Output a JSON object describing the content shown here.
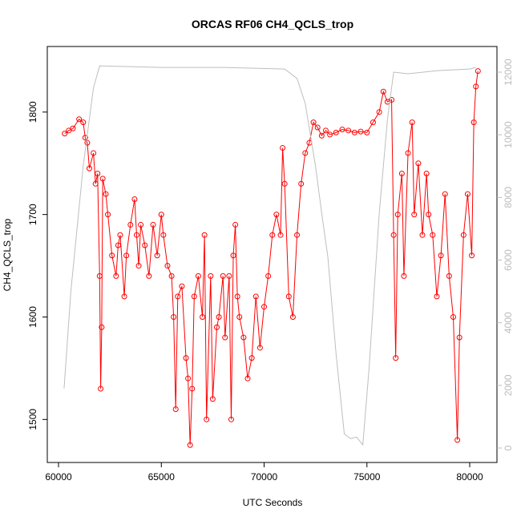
{
  "chart_data": {
    "type": "line",
    "title": "ORCAS RF06 CH4_QCLS_trop",
    "x_label": "UTC Seconds",
    "y_label": "CH4_QCLS_trop",
    "xlim": [
      59454,
      81325
    ],
    "ylim": [
      1458,
      1864
    ],
    "y2lim": [
      -461,
      12819
    ],
    "xticks": [
      60000,
      65000,
      70000,
      75000,
      80000
    ],
    "yticks": [
      1500,
      1600,
      1700,
      1800
    ],
    "y2ticks": [
      0,
      2000,
      4000,
      6000,
      8000,
      10000,
      12000
    ],
    "series": [
      {
        "color": "#ff0000",
        "markers": true,
        "x": [
          60300,
          60500,
          60700,
          61000,
          61200,
          61300,
          61400,
          61500,
          61700,
          61800,
          61900,
          62000,
          62050,
          62100,
          62150,
          62300,
          62400,
          62600,
          62800,
          62900,
          63000,
          63200,
          63300,
          63500,
          63700,
          63800,
          63900,
          64000,
          64200,
          64400,
          64600,
          64800,
          65000,
          65100,
          65300,
          65500,
          65600,
          65700,
          65800,
          66000,
          66200,
          66300,
          66400,
          66500,
          66600,
          66800,
          67000,
          67100,
          67200,
          67400,
          67500,
          67700,
          67800,
          68000,
          68100,
          68300,
          68400,
          68500,
          68600,
          68700,
          68800,
          69000,
          69200,
          69400,
          69600,
          69800,
          70000,
          70200,
          70400,
          70600,
          70800,
          70900,
          71000,
          71200,
          71400,
          71600,
          71800,
          72000,
          72200,
          72400,
          72600,
          72800,
          73000,
          73200,
          73500,
          73800,
          74100,
          74400,
          74700,
          75000,
          75300,
          75600,
          75800,
          76000,
          76200,
          76300,
          76400,
          76500,
          76700,
          76800,
          77000,
          77200,
          77300,
          77500,
          77700,
          77900,
          78000,
          78200,
          78400,
          78600,
          78800,
          79000,
          79200,
          79400,
          79500,
          79700,
          79900,
          80100,
          80200,
          80300,
          80400
        ],
        "values": [
          1779,
          1782,
          1784,
          1793,
          1790,
          1775,
          1770,
          1745,
          1760,
          1730,
          1740,
          1640,
          1530,
          1590,
          1735,
          1720,
          1700,
          1660,
          1640,
          1670,
          1680,
          1620,
          1660,
          1690,
          1715,
          1680,
          1650,
          1690,
          1670,
          1640,
          1690,
          1660,
          1700,
          1680,
          1650,
          1640,
          1600,
          1510,
          1620,
          1630,
          1560,
          1540,
          1475,
          1530,
          1620,
          1640,
          1600,
          1680,
          1500,
          1640,
          1520,
          1590,
          1600,
          1640,
          1580,
          1640,
          1500,
          1660,
          1690,
          1620,
          1600,
          1580,
          1540,
          1560,
          1620,
          1570,
          1610,
          1640,
          1680,
          1700,
          1680,
          1765,
          1730,
          1620,
          1600,
          1680,
          1730,
          1760,
          1770,
          1790,
          1785,
          1777,
          1782,
          1778,
          1780,
          1783,
          1782,
          1780,
          1781,
          1780,
          1790,
          1800,
          1820,
          1810,
          1812,
          1680,
          1560,
          1700,
          1740,
          1640,
          1760,
          1790,
          1700,
          1750,
          1680,
          1740,
          1700,
          1680,
          1620,
          1660,
          1720,
          1640,
          1600,
          1480,
          1580,
          1680,
          1720,
          1660,
          1790,
          1825,
          1840
        ]
      },
      {
        "color": "#bebebe",
        "axis": "y2",
        "x": [
          60270,
          60600,
          61200,
          61700,
          62000,
          65000,
          68000,
          71000,
          71600,
          72000,
          72500,
          72800,
          73100,
          73500,
          73900,
          74200,
          74500,
          74800,
          75100,
          75600,
          76000,
          76300,
          77000,
          78500,
          80000,
          80300
        ],
        "values": [
          1900,
          5000,
          9000,
          11500,
          12200,
          12150,
          12150,
          12100,
          11800,
          11000,
          9000,
          7500,
          6100,
          3000,
          450,
          300,
          350,
          100,
          2500,
          7500,
          10500,
          12000,
          11950,
          12050,
          12100,
          12150
        ]
      }
    ]
  }
}
